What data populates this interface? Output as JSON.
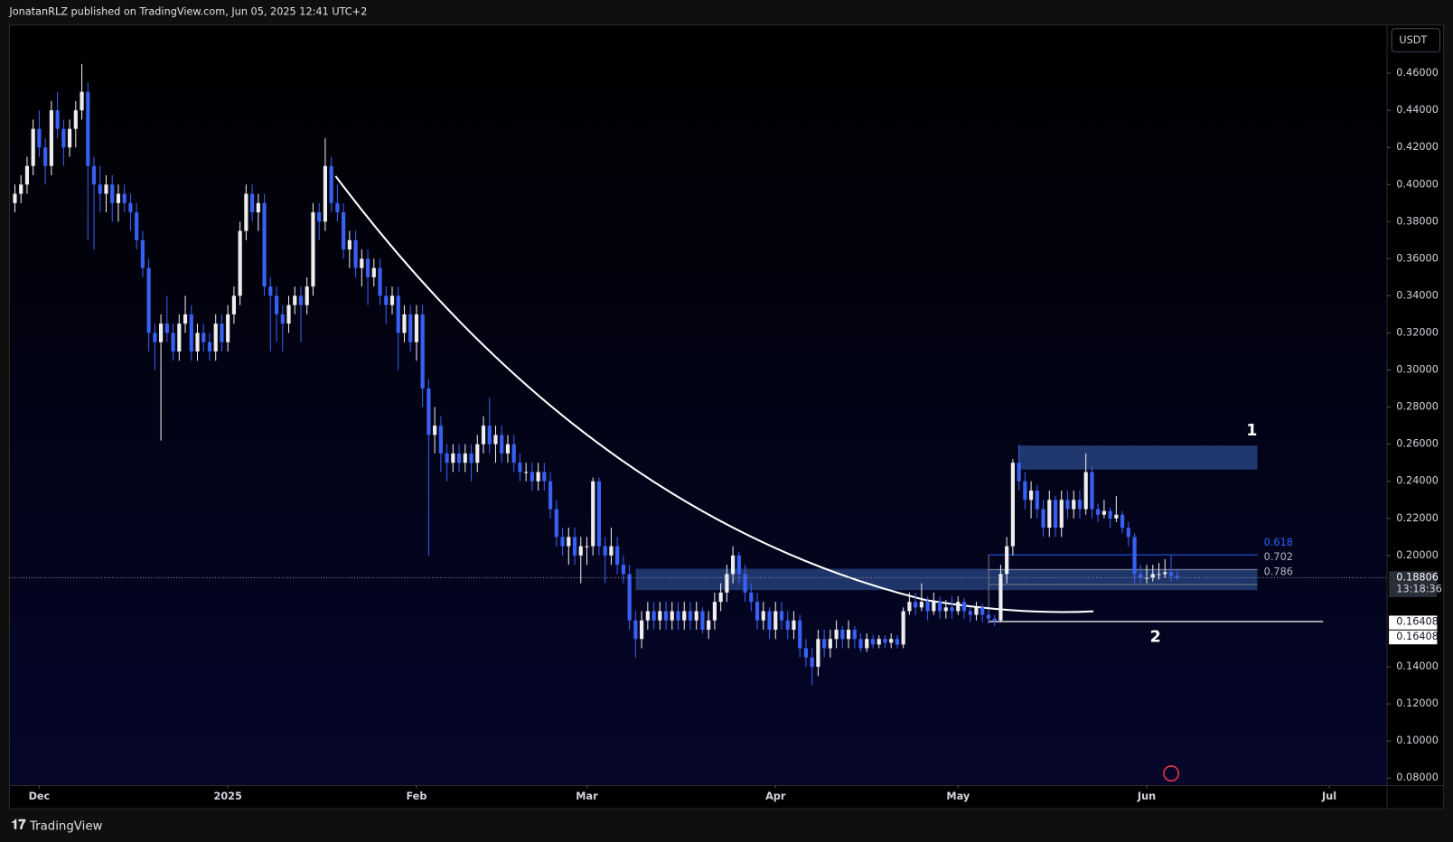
{
  "chart_data": {
    "type": "candlestick",
    "header": "JonatanRLZ published on TradingView.com, Jun 05, 2025 12:41 UTC+2",
    "currency": "USDT",
    "brand": "TradingView",
    "up_color": "#eeeeee",
    "down_color": "#3761f5",
    "xlim": [
      -4.9,
      221.5
    ],
    "xticks": [
      {
        "value": 0,
        "label": "Dec"
      },
      {
        "value": 31,
        "label": "2025"
      },
      {
        "value": 62,
        "label": "Feb"
      },
      {
        "value": 90,
        "label": "Mar"
      },
      {
        "value": 121,
        "label": "Apr"
      },
      {
        "value": 151,
        "label": "May"
      },
      {
        "value": 182,
        "label": "Jun"
      },
      {
        "value": 212,
        "label": "Jul"
      }
    ],
    "ylim": [
      0.076,
      0.486
    ],
    "yticks": [
      {
        "value": 0.46,
        "label": "0.46000"
      },
      {
        "value": 0.44,
        "label": "0.44000"
      },
      {
        "value": 0.42,
        "label": "0.42000"
      },
      {
        "value": 0.4,
        "label": "0.40000"
      },
      {
        "value": 0.38,
        "label": "0.38000"
      },
      {
        "value": 0.36,
        "label": "0.36000"
      },
      {
        "value": 0.34,
        "label": "0.34000"
      },
      {
        "value": 0.32,
        "label": "0.32000"
      },
      {
        "value": 0.3,
        "label": "0.30000"
      },
      {
        "value": 0.28,
        "label": "0.28000"
      },
      {
        "value": 0.26,
        "label": "0.26000"
      },
      {
        "value": 0.24,
        "label": "0.24000"
      },
      {
        "value": 0.22,
        "label": "0.22000"
      },
      {
        "value": 0.2,
        "label": "0.20000"
      },
      {
        "value": 0.14,
        "label": "0.14000"
      },
      {
        "value": 0.12,
        "label": "0.12000"
      },
      {
        "value": 0.1,
        "label": "0.10000"
      },
      {
        "value": 0.08,
        "label": "0.08000"
      }
    ],
    "last_price": 0.18806,
    "countdown": "13:18:36",
    "level_labels": [
      0.16408,
      0.16408
    ],
    "fib_labels": [
      "0.618",
      "0.702",
      "0.786"
    ],
    "annotations": [
      "1",
      "2"
    ],
    "candles": [
      [
        -4,
        0.39,
        0.4,
        0.385,
        0.395
      ],
      [
        -3,
        0.395,
        0.405,
        0.39,
        0.4
      ],
      [
        -2,
        0.4,
        0.415,
        0.395,
        0.41
      ],
      [
        -1,
        0.41,
        0.435,
        0.405,
        0.43
      ],
      [
        0,
        0.43,
        0.44,
        0.415,
        0.42
      ],
      [
        1,
        0.42,
        0.425,
        0.4,
        0.41
      ],
      [
        2,
        0.41,
        0.445,
        0.405,
        0.44
      ],
      [
        3,
        0.44,
        0.45,
        0.425,
        0.43
      ],
      [
        4,
        0.43,
        0.435,
        0.41,
        0.42
      ],
      [
        5,
        0.42,
        0.435,
        0.415,
        0.43
      ],
      [
        6,
        0.43,
        0.445,
        0.42,
        0.44
      ],
      [
        7,
        0.44,
        0.465,
        0.435,
        0.45
      ],
      [
        8,
        0.45,
        0.455,
        0.37,
        0.41
      ],
      [
        9,
        0.41,
        0.415,
        0.365,
        0.4
      ],
      [
        10,
        0.4,
        0.41,
        0.385,
        0.395
      ],
      [
        11,
        0.395,
        0.405,
        0.385,
        0.4
      ],
      [
        12,
        0.4,
        0.405,
        0.38,
        0.39
      ],
      [
        13,
        0.39,
        0.4,
        0.38,
        0.395
      ],
      [
        14,
        0.395,
        0.4,
        0.385,
        0.39
      ],
      [
        15,
        0.39,
        0.395,
        0.375,
        0.385
      ],
      [
        16,
        0.385,
        0.39,
        0.365,
        0.37
      ],
      [
        17,
        0.37,
        0.375,
        0.35,
        0.355
      ],
      [
        18,
        0.355,
        0.36,
        0.31,
        0.32
      ],
      [
        19,
        0.32,
        0.325,
        0.3,
        0.315
      ],
      [
        20,
        0.315,
        0.33,
        0.262,
        0.325
      ],
      [
        21,
        0.325,
        0.34,
        0.315,
        0.32
      ],
      [
        22,
        0.32,
        0.325,
        0.305,
        0.31
      ],
      [
        23,
        0.31,
        0.33,
        0.305,
        0.325
      ],
      [
        24,
        0.325,
        0.34,
        0.32,
        0.33
      ],
      [
        25,
        0.33,
        0.335,
        0.305,
        0.31
      ],
      [
        26,
        0.31,
        0.325,
        0.305,
        0.32
      ],
      [
        27,
        0.32,
        0.325,
        0.31,
        0.315
      ],
      [
        28,
        0.315,
        0.32,
        0.305,
        0.31
      ],
      [
        29,
        0.31,
        0.33,
        0.305,
        0.325
      ],
      [
        30,
        0.325,
        0.33,
        0.31,
        0.315
      ],
      [
        31,
        0.315,
        0.335,
        0.31,
        0.33
      ],
      [
        32,
        0.33,
        0.345,
        0.325,
        0.34
      ],
      [
        33,
        0.34,
        0.38,
        0.335,
        0.375
      ],
      [
        34,
        0.375,
        0.4,
        0.37,
        0.395
      ],
      [
        35,
        0.395,
        0.4,
        0.38,
        0.385
      ],
      [
        36,
        0.385,
        0.395,
        0.375,
        0.39
      ],
      [
        37,
        0.39,
        0.395,
        0.34,
        0.345
      ],
      [
        38,
        0.345,
        0.35,
        0.31,
        0.34
      ],
      [
        39,
        0.34,
        0.345,
        0.315,
        0.33
      ],
      [
        40,
        0.33,
        0.335,
        0.31,
        0.325
      ],
      [
        41,
        0.325,
        0.34,
        0.32,
        0.335
      ],
      [
        42,
        0.335,
        0.345,
        0.33,
        0.34
      ],
      [
        43,
        0.34,
        0.345,
        0.315,
        0.335
      ],
      [
        44,
        0.335,
        0.35,
        0.33,
        0.345
      ],
      [
        45,
        0.345,
        0.39,
        0.34,
        0.385
      ],
      [
        46,
        0.385,
        0.39,
        0.37,
        0.38
      ],
      [
        47,
        0.38,
        0.425,
        0.375,
        0.41
      ],
      [
        48,
        0.41,
        0.415,
        0.385,
        0.39
      ],
      [
        49,
        0.39,
        0.4,
        0.38,
        0.385
      ],
      [
        50,
        0.385,
        0.39,
        0.36,
        0.365
      ],
      [
        51,
        0.365,
        0.375,
        0.355,
        0.37
      ],
      [
        52,
        0.37,
        0.375,
        0.35,
        0.355
      ],
      [
        53,
        0.355,
        0.365,
        0.345,
        0.36
      ],
      [
        54,
        0.36,
        0.365,
        0.335,
        0.35
      ],
      [
        55,
        0.35,
        0.36,
        0.345,
        0.355
      ],
      [
        56,
        0.355,
        0.36,
        0.335,
        0.34
      ],
      [
        57,
        0.34,
        0.345,
        0.325,
        0.335
      ],
      [
        58,
        0.335,
        0.345,
        0.33,
        0.34
      ],
      [
        59,
        0.34,
        0.345,
        0.3,
        0.32
      ],
      [
        60,
        0.32,
        0.335,
        0.315,
        0.33
      ],
      [
        61,
        0.33,
        0.335,
        0.31,
        0.315
      ],
      [
        62,
        0.315,
        0.335,
        0.305,
        0.33
      ],
      [
        63,
        0.33,
        0.335,
        0.28,
        0.29
      ],
      [
        64,
        0.29,
        0.295,
        0.2,
        0.265
      ],
      [
        65,
        0.265,
        0.28,
        0.255,
        0.27
      ],
      [
        66,
        0.27,
        0.275,
        0.245,
        0.255
      ],
      [
        67,
        0.255,
        0.26,
        0.24,
        0.25
      ],
      [
        68,
        0.25,
        0.26,
        0.245,
        0.255
      ],
      [
        69,
        0.255,
        0.26,
        0.245,
        0.25
      ],
      [
        70,
        0.25,
        0.26,
        0.245,
        0.255
      ],
      [
        71,
        0.255,
        0.26,
        0.24,
        0.25
      ],
      [
        72,
        0.25,
        0.265,
        0.245,
        0.26
      ],
      [
        73,
        0.26,
        0.275,
        0.255,
        0.27
      ],
      [
        74,
        0.27,
        0.285,
        0.255,
        0.26
      ],
      [
        75,
        0.26,
        0.27,
        0.25,
        0.265
      ],
      [
        76,
        0.265,
        0.27,
        0.25,
        0.255
      ],
      [
        77,
        0.255,
        0.265,
        0.25,
        0.26
      ],
      [
        78,
        0.26,
        0.265,
        0.245,
        0.25
      ],
      [
        79,
        0.25,
        0.255,
        0.24,
        0.245
      ],
      [
        80,
        0.245,
        0.25,
        0.24,
        0.245
      ],
      [
        81,
        0.245,
        0.25,
        0.235,
        0.24
      ],
      [
        82,
        0.24,
        0.25,
        0.235,
        0.245
      ],
      [
        83,
        0.245,
        0.25,
        0.235,
        0.24
      ],
      [
        84,
        0.24,
        0.245,
        0.22,
        0.225
      ],
      [
        85,
        0.225,
        0.23,
        0.205,
        0.21
      ],
      [
        86,
        0.21,
        0.215,
        0.2,
        0.205
      ],
      [
        87,
        0.205,
        0.215,
        0.195,
        0.21
      ],
      [
        88,
        0.21,
        0.215,
        0.195,
        0.2
      ],
      [
        89,
        0.2,
        0.21,
        0.185,
        0.205
      ],
      [
        90,
        0.205,
        0.21,
        0.195,
        0.205
      ],
      [
        91,
        0.205,
        0.242,
        0.2,
        0.24
      ],
      [
        92,
        0.24,
        0.242,
        0.2,
        0.205
      ],
      [
        93,
        0.205,
        0.21,
        0.185,
        0.2
      ],
      [
        94,
        0.2,
        0.215,
        0.195,
        0.205
      ],
      [
        95,
        0.205,
        0.21,
        0.19,
        0.195
      ],
      [
        96,
        0.195,
        0.2,
        0.185,
        0.19
      ],
      [
        97,
        0.19,
        0.195,
        0.16,
        0.165
      ],
      [
        98,
        0.165,
        0.17,
        0.145,
        0.155
      ],
      [
        99,
        0.155,
        0.17,
        0.15,
        0.165
      ],
      [
        100,
        0.165,
        0.175,
        0.16,
        0.17
      ],
      [
        101,
        0.17,
        0.175,
        0.16,
        0.165
      ],
      [
        102,
        0.165,
        0.175,
        0.16,
        0.17
      ],
      [
        103,
        0.17,
        0.175,
        0.16,
        0.165
      ],
      [
        104,
        0.165,
        0.175,
        0.16,
        0.17
      ],
      [
        105,
        0.17,
        0.175,
        0.16,
        0.165
      ],
      [
        106,
        0.165,
        0.175,
        0.16,
        0.17
      ],
      [
        107,
        0.17,
        0.175,
        0.16,
        0.165
      ],
      [
        108,
        0.165,
        0.175,
        0.16,
        0.17
      ],
      [
        109,
        0.17,
        0.172,
        0.158,
        0.16
      ],
      [
        110,
        0.16,
        0.17,
        0.155,
        0.165
      ],
      [
        111,
        0.165,
        0.18,
        0.16,
        0.175
      ],
      [
        112,
        0.175,
        0.185,
        0.17,
        0.18
      ],
      [
        113,
        0.18,
        0.195,
        0.175,
        0.19
      ],
      [
        114,
        0.19,
        0.205,
        0.185,
        0.2
      ],
      [
        115,
        0.2,
        0.202,
        0.185,
        0.19
      ],
      [
        116,
        0.19,
        0.195,
        0.175,
        0.18
      ],
      [
        117,
        0.18,
        0.185,
        0.17,
        0.175
      ],
      [
        118,
        0.175,
        0.18,
        0.16,
        0.165
      ],
      [
        119,
        0.165,
        0.175,
        0.16,
        0.17
      ],
      [
        120,
        0.17,
        0.172,
        0.155,
        0.16
      ],
      [
        121,
        0.16,
        0.175,
        0.155,
        0.17
      ],
      [
        122,
        0.17,
        0.175,
        0.16,
        0.165
      ],
      [
        123,
        0.165,
        0.17,
        0.155,
        0.16
      ],
      [
        124,
        0.16,
        0.17,
        0.155,
        0.165
      ],
      [
        125,
        0.165,
        0.168,
        0.145,
        0.15
      ],
      [
        126,
        0.15,
        0.155,
        0.14,
        0.145
      ],
      [
        127,
        0.145,
        0.15,
        0.13,
        0.14
      ],
      [
        128,
        0.14,
        0.16,
        0.135,
        0.155
      ],
      [
        129,
        0.155,
        0.16,
        0.145,
        0.15
      ],
      [
        130,
        0.15,
        0.16,
        0.145,
        0.155
      ],
      [
        131,
        0.155,
        0.165,
        0.15,
        0.16
      ],
      [
        132,
        0.16,
        0.162,
        0.15,
        0.155
      ],
      [
        133,
        0.155,
        0.165,
        0.15,
        0.16
      ],
      [
        134,
        0.16,
        0.162,
        0.15,
        0.155
      ],
      [
        135,
        0.155,
        0.158,
        0.148,
        0.15
      ],
      [
        136,
        0.15,
        0.158,
        0.148,
        0.155
      ],
      [
        137,
        0.155,
        0.157,
        0.15,
        0.152
      ],
      [
        138,
        0.152,
        0.157,
        0.15,
        0.155
      ],
      [
        139,
        0.155,
        0.157,
        0.15,
        0.153
      ],
      [
        140,
        0.153,
        0.158,
        0.15,
        0.155
      ],
      [
        141,
        0.155,
        0.157,
        0.15,
        0.152
      ],
      [
        142,
        0.152,
        0.172,
        0.15,
        0.17
      ],
      [
        143,
        0.17,
        0.18,
        0.168,
        0.175
      ],
      [
        144,
        0.175,
        0.18,
        0.168,
        0.172
      ],
      [
        145,
        0.172,
        0.185,
        0.17,
        0.175
      ],
      [
        146,
        0.175,
        0.178,
        0.165,
        0.17
      ],
      [
        147,
        0.17,
        0.18,
        0.168,
        0.175
      ],
      [
        148,
        0.175,
        0.178,
        0.166,
        0.17
      ],
      [
        149,
        0.17,
        0.176,
        0.166,
        0.172
      ],
      [
        150,
        0.172,
        0.178,
        0.166,
        0.17
      ],
      [
        151,
        0.17,
        0.178,
        0.168,
        0.175
      ],
      [
        152,
        0.175,
        0.177,
        0.166,
        0.17
      ],
      [
        153,
        0.17,
        0.172,
        0.164,
        0.168
      ],
      [
        154,
        0.168,
        0.175,
        0.165,
        0.172
      ],
      [
        155,
        0.172,
        0.174,
        0.164,
        0.168
      ],
      [
        156,
        0.168,
        0.17,
        0.163,
        0.166
      ],
      [
        157,
        0.166,
        0.168,
        0.162,
        0.165
      ],
      [
        158,
        0.165,
        0.195,
        0.164,
        0.19
      ],
      [
        159,
        0.19,
        0.21,
        0.185,
        0.205
      ],
      [
        160,
        0.205,
        0.252,
        0.2,
        0.25
      ],
      [
        161,
        0.25,
        0.26,
        0.235,
        0.24
      ],
      [
        162,
        0.24,
        0.245,
        0.225,
        0.23
      ],
      [
        163,
        0.23,
        0.24,
        0.22,
        0.235
      ],
      [
        164,
        0.235,
        0.238,
        0.22,
        0.225
      ],
      [
        165,
        0.225,
        0.23,
        0.21,
        0.215
      ],
      [
        166,
        0.215,
        0.235,
        0.21,
        0.23
      ],
      [
        167,
        0.23,
        0.232,
        0.21,
        0.215
      ],
      [
        168,
        0.215,
        0.235,
        0.21,
        0.23
      ],
      [
        169,
        0.23,
        0.235,
        0.22,
        0.225
      ],
      [
        170,
        0.225,
        0.235,
        0.22,
        0.23
      ],
      [
        171,
        0.23,
        0.235,
        0.22,
        0.225
      ],
      [
        172,
        0.225,
        0.255,
        0.222,
        0.245
      ],
      [
        173,
        0.245,
        0.248,
        0.22,
        0.225
      ],
      [
        174,
        0.225,
        0.228,
        0.218,
        0.222
      ],
      [
        175,
        0.222,
        0.23,
        0.22,
        0.224
      ],
      [
        176,
        0.224,
        0.226,
        0.215,
        0.22
      ],
      [
        177,
        0.22,
        0.232,
        0.218,
        0.222
      ],
      [
        178,
        0.222,
        0.224,
        0.212,
        0.215
      ],
      [
        179,
        0.215,
        0.218,
        0.205,
        0.21
      ],
      [
        180,
        0.21,
        0.212,
        0.185,
        0.19
      ],
      [
        181,
        0.19,
        0.195,
        0.185,
        0.188
      ],
      [
        182,
        0.188,
        0.195,
        0.185,
        0.188
      ],
      [
        183,
        0.188,
        0.195,
        0.186,
        0.19
      ],
      [
        184,
        0.19,
        0.196,
        0.187,
        0.19
      ],
      [
        185,
        0.19,
        0.198,
        0.188,
        0.191
      ],
      [
        186,
        0.191,
        0.2,
        0.186,
        0.189
      ],
      [
        187,
        0.189,
        0.192,
        0.187,
        0.188
      ]
    ]
  }
}
